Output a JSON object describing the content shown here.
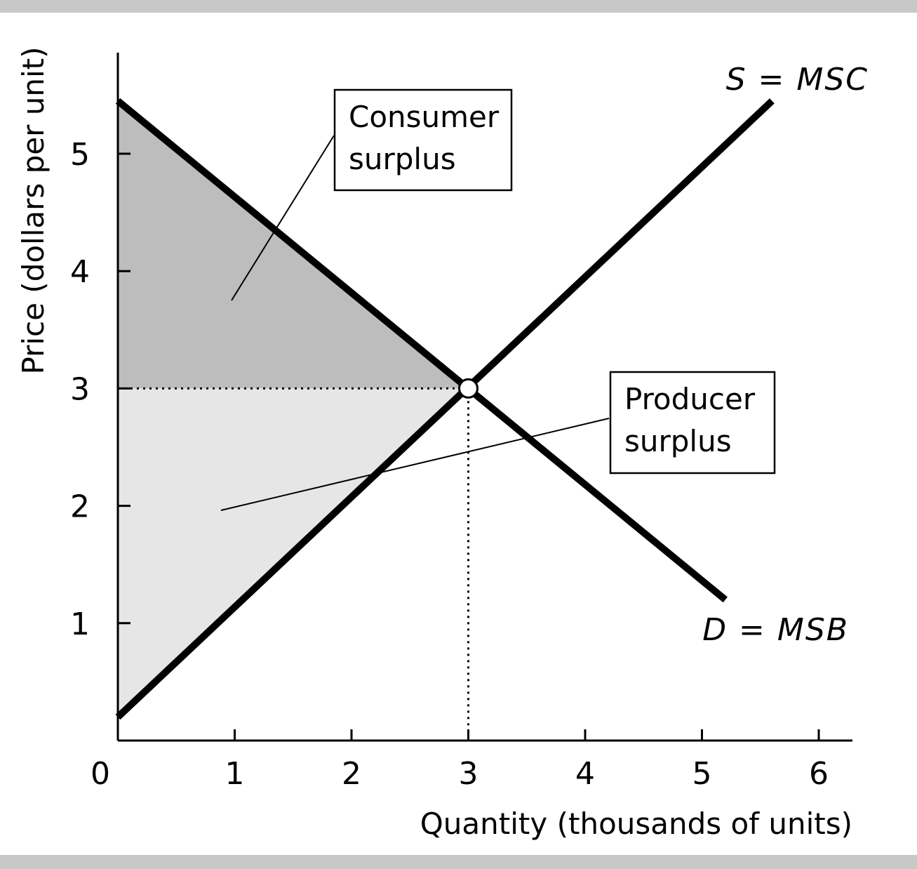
{
  "colors": {
    "band": "#c8c8c8",
    "consumer_surplus": "#bdbdbd",
    "producer_surplus": "#e6e6e6",
    "curve": "#000000"
  },
  "chart_data": {
    "type": "line",
    "xlabel": "Quantity (thousands of units)",
    "ylabel": "Price (dollars per unit)",
    "origin_label": "0",
    "xlim": [
      0,
      6.3
    ],
    "ylim": [
      0,
      5.9
    ],
    "x_ticks": [
      1,
      2,
      3,
      4,
      5,
      6
    ],
    "y_ticks": [
      1,
      2,
      3,
      4,
      5
    ],
    "grid": false,
    "series": [
      {
        "name": "S = MSC",
        "points": [
          [
            0,
            0.2
          ],
          [
            5.6,
            5.45
          ]
        ]
      },
      {
        "name": "D = MSB",
        "points": [
          [
            0,
            5.45
          ],
          [
            5.2,
            1.2
          ]
        ]
      }
    ],
    "equilibrium": {
      "x": 3,
      "y": 3
    },
    "areas": [
      {
        "name": "Consumer surplus",
        "points": [
          [
            0,
            5.45
          ],
          [
            3,
            3
          ],
          [
            0,
            3
          ]
        ]
      },
      {
        "name": "Producer surplus",
        "points": [
          [
            0,
            3
          ],
          [
            3,
            3
          ],
          [
            0,
            0.2
          ]
        ]
      }
    ],
    "annotations": {
      "consumer_surplus": [
        "Consumer",
        "surplus"
      ],
      "producer_surplus": [
        "Producer",
        "surplus"
      ]
    }
  }
}
